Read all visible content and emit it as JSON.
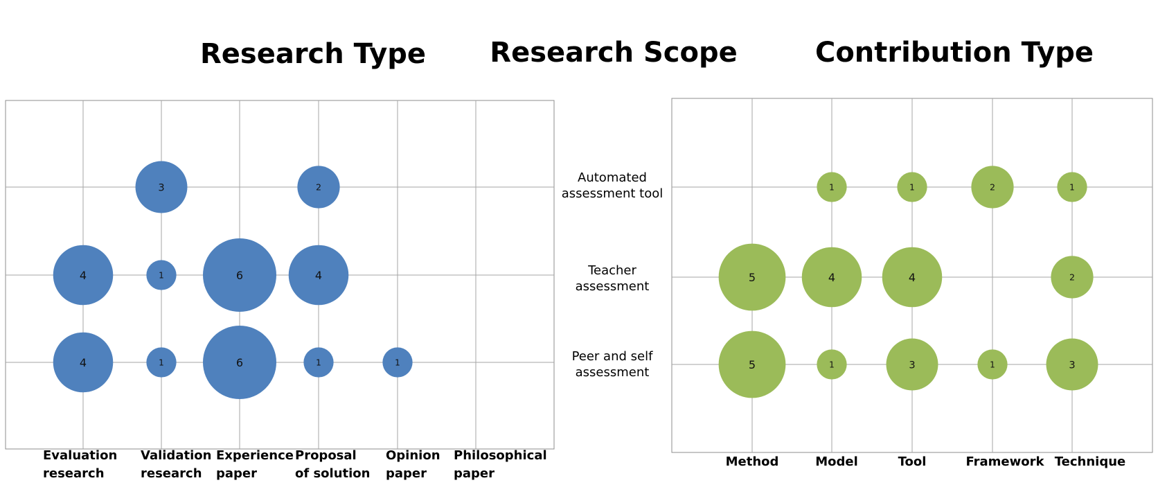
{
  "titles": {
    "left": "Research Type",
    "middle": "Research Scope",
    "right": "Contribution Type"
  },
  "chart_data": [
    {
      "type": "bubble",
      "title": "Research Type",
      "categories": [
        "Evaluation research",
        "Validation research",
        "Experience paper",
        "Proposal of solution",
        "Opinion paper",
        "Philosophical paper"
      ],
      "rows": [
        "Automated assessment tool",
        "Teacher assessment",
        "Peer and self assessment"
      ],
      "color": "#4f81bd",
      "points": [
        {
          "category": "Validation research",
          "row": "Automated assessment tool",
          "value": 3
        },
        {
          "category": "Proposal of solution",
          "row": "Automated assessment tool",
          "value": 2
        },
        {
          "category": "Evaluation research",
          "row": "Teacher assessment",
          "value": 4
        },
        {
          "category": "Validation research",
          "row": "Teacher assessment",
          "value": 1
        },
        {
          "category": "Experience paper",
          "row": "Teacher assessment",
          "value": 6
        },
        {
          "category": "Proposal of solution",
          "row": "Teacher assessment",
          "value": 4
        },
        {
          "category": "Evaluation research",
          "row": "Peer and self assessment",
          "value": 4
        },
        {
          "category": "Validation research",
          "row": "Peer and self assessment",
          "value": 1
        },
        {
          "category": "Experience paper",
          "row": "Peer and self assessment",
          "value": 6
        },
        {
          "category": "Proposal of solution",
          "row": "Peer and self assessment",
          "value": 1
        },
        {
          "category": "Opinion paper",
          "row": "Peer and self assessment",
          "value": 1
        }
      ],
      "grid": true
    },
    {
      "type": "bubble",
      "title": "Contribution Type",
      "categories": [
        "Method",
        "Model",
        "Tool",
        "Framework",
        "Technique"
      ],
      "rows": [
        "Automated assessment tool",
        "Teacher assessment",
        "Peer and self assessment"
      ],
      "color": "#9bbb59",
      "points": [
        {
          "category": "Model",
          "row": "Automated assessment tool",
          "value": 1
        },
        {
          "category": "Tool",
          "row": "Automated assessment tool",
          "value": 1
        },
        {
          "category": "Framework",
          "row": "Automated assessment tool",
          "value": 2
        },
        {
          "category": "Technique",
          "row": "Automated assessment tool",
          "value": 1
        },
        {
          "category": "Method",
          "row": "Teacher assessment",
          "value": 5
        },
        {
          "category": "Model",
          "row": "Teacher assessment",
          "value": 4
        },
        {
          "category": "Tool",
          "row": "Teacher assessment",
          "value": 4
        },
        {
          "category": "Technique",
          "row": "Teacher assessment",
          "value": 2
        },
        {
          "category": "Method",
          "row": "Peer and self assessment",
          "value": 5
        },
        {
          "category": "Model",
          "row": "Peer and self assessment",
          "value": 1
        },
        {
          "category": "Tool",
          "row": "Peer and self assessment",
          "value": 3
        },
        {
          "category": "Framework",
          "row": "Peer and self assessment",
          "value": 1
        },
        {
          "category": "Technique",
          "row": "Peer and self assessment",
          "value": 3
        }
      ],
      "grid": true
    }
  ],
  "left_category_lines": [
    [
      "Evaluation",
      "research"
    ],
    [
      "Validation",
      "research"
    ],
    [
      "Experience",
      "paper"
    ],
    [
      "Proposal",
      "of solution"
    ],
    [
      "Opinion",
      "paper"
    ],
    [
      "Philosophical",
      "paper"
    ]
  ],
  "row_label_lines": [
    [
      "Automated",
      "assessment tool"
    ],
    [
      "Teacher",
      "assessment"
    ],
    [
      "Peer and self",
      "assessment"
    ]
  ]
}
